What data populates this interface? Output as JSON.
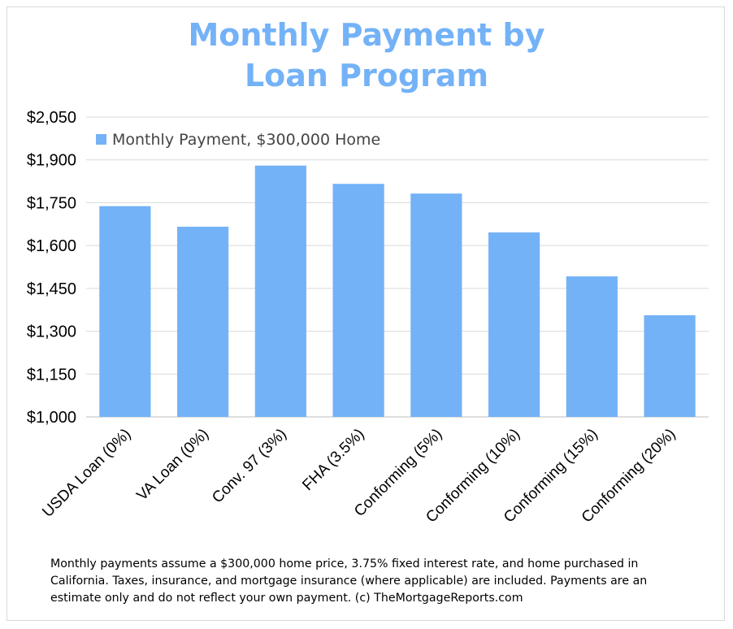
{
  "chart_data": {
    "type": "bar",
    "title_lines": [
      "Monthly Payment by",
      "Loan Program"
    ],
    "categories": [
      "USDA Loan (0%)",
      "VA Loan (0%)",
      "Conv. 97 (3%)",
      "FHA (3.5%)",
      "Conforming (5%)",
      "Conforming (10%)",
      "Conforming (15%)",
      "Conforming (20%)"
    ],
    "series": [
      {
        "name": "Monthly Payment, $300,000 Home",
        "values": [
          1738,
          1666,
          1880,
          1816,
          1782,
          1646,
          1492,
          1356
        ]
      }
    ],
    "ylim": [
      1000,
      2050
    ],
    "yticks": [
      1000,
      1150,
      1300,
      1450,
      1600,
      1750,
      1900,
      2050
    ],
    "ytick_labels": [
      "$1,000",
      "$1,150",
      "$1,300",
      "$1,450",
      "$1,600",
      "$1,750",
      "$1,900",
      "$2,050"
    ],
    "bar_color": "#74b2f7",
    "grid": true,
    "legend_position": "top-left",
    "xlabel": "",
    "ylabel": ""
  },
  "footnote": "Monthly payments assume a $300,000 home price, 3.75% fixed interest rate, and home purchased in California. Taxes, insurance, and mortgage insurance (where applicable) are included. Payments are an estimate only and do not reflect your own payment. (c) TheMortgageReports.com"
}
